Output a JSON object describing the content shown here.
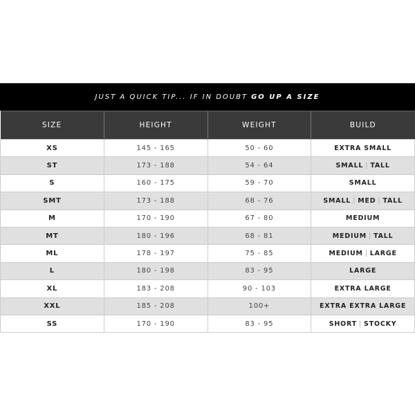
{
  "banner": {
    "tip": "JUST A QUICK TIP... IF IN DOUBT",
    "emphasis": "GO UP A SIZE"
  },
  "columns": [
    "SIZE",
    "HEIGHT",
    "WEIGHT",
    "BUILD"
  ],
  "rows": [
    {
      "size": "XS",
      "height": "145 - 165",
      "weight": "50 - 60",
      "build": [
        "EXTRA SMALL"
      ]
    },
    {
      "size": "ST",
      "height": "173 - 188",
      "weight": "54 - 64",
      "build": [
        "SMALL",
        "TALL"
      ]
    },
    {
      "size": "S",
      "height": "160 - 175",
      "weight": "59 - 70",
      "build": [
        "SMALL"
      ]
    },
    {
      "size": "SMT",
      "height": "173 - 188",
      "weight": "68 - 76",
      "build": [
        "SMALL",
        "MED",
        "TALL"
      ]
    },
    {
      "size": "M",
      "height": "170 - 190",
      "weight": "67 - 80",
      "build": [
        "MEDIUM"
      ]
    },
    {
      "size": "MT",
      "height": "180 - 196",
      "weight": "68 - 81",
      "build": [
        "MEDIUM",
        "TALL"
      ]
    },
    {
      "size": "ML",
      "height": "178 - 197",
      "weight": "75 - 85",
      "build": [
        "MEDIUM",
        "LARGE"
      ]
    },
    {
      "size": "L",
      "height": "180 - 198",
      "weight": "83 - 95",
      "build": [
        "LARGE"
      ]
    },
    {
      "size": "XL",
      "height": "183 - 208",
      "weight": "90 - 103",
      "build": [
        "EXTRA LARGE"
      ]
    },
    {
      "size": "XXL",
      "height": "185 - 208",
      "weight": "100+",
      "build": [
        "EXTRA EXTRA LARGE"
      ]
    },
    {
      "size": "SS",
      "height": "170 - 190",
      "weight": "83 - 95",
      "build": [
        "SHORT",
        "STOCKY"
      ]
    }
  ],
  "separator": "|"
}
